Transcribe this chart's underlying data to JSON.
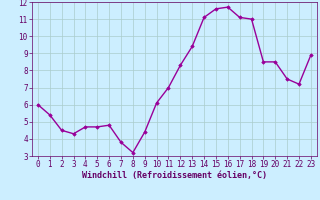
{
  "x": [
    0,
    1,
    2,
    3,
    4,
    5,
    6,
    7,
    8,
    9,
    10,
    11,
    12,
    13,
    14,
    15,
    16,
    17,
    18,
    19,
    20,
    21,
    22,
    23
  ],
  "y": [
    6.0,
    5.4,
    4.5,
    4.3,
    4.7,
    4.7,
    4.8,
    3.8,
    3.2,
    4.4,
    6.1,
    7.0,
    8.3,
    9.4,
    11.1,
    11.6,
    11.7,
    11.1,
    11.0,
    8.5,
    8.5,
    7.5,
    7.2,
    8.9
  ],
  "line_color": "#990099",
  "marker": "D",
  "marker_size": 1.8,
  "bg_color": "#cceeff",
  "grid_color": "#aacccc",
  "xlabel": "Windchill (Refroidissement éolien,°C)",
  "xlabel_color": "#660066",
  "tick_color": "#660066",
  "xlim": [
    -0.5,
    23.5
  ],
  "ylim": [
    3,
    12
  ],
  "yticks": [
    3,
    4,
    5,
    6,
    7,
    8,
    9,
    10,
    11,
    12
  ],
  "xticks": [
    0,
    1,
    2,
    3,
    4,
    5,
    6,
    7,
    8,
    9,
    10,
    11,
    12,
    13,
    14,
    15,
    16,
    17,
    18,
    19,
    20,
    21,
    22,
    23
  ],
  "line_width": 1.0,
  "tick_fontsize": 5.5,
  "xlabel_fontsize": 6.0
}
